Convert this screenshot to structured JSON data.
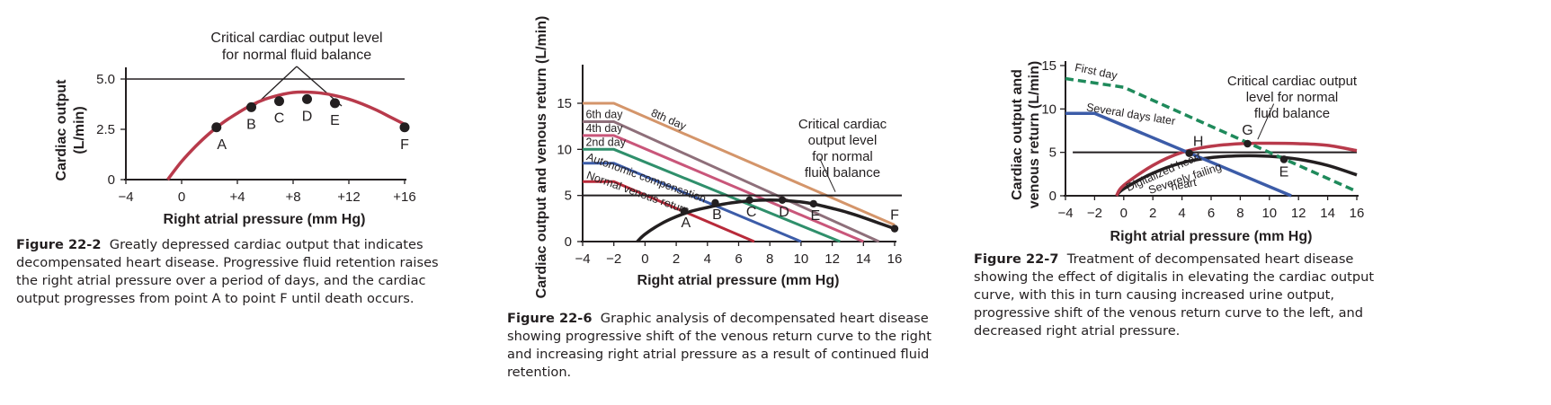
{
  "fig1": {
    "caption_num": "Figure 22-2",
    "caption_text": "Greatly depressed cardiac output that indicates decompensated heart disease. Progressive fluid retention raises the right atrial pressure over a period of days, and the cardiac output progresses from point A to point F until death occurs.",
    "annotation_line1": "Critical cardiac output level",
    "annotation_line2": "for normal fluid balance"
  },
  "fig2": {
    "caption_num": "Figure 22-6",
    "caption_text": "Graphic analysis of decompensated heart disease showing progressive shift of the venous return curve to the right and increasing right atrial pressure as a result of continued fluid retention.",
    "annotation_lines": [
      "Critical cardiac",
      "output level",
      "for normal",
      "fluid balance"
    ]
  },
  "fig3": {
    "caption_num": "Figure 22-7",
    "caption_text": "Treatment of decompensated heart disease showing the effect of digitalis in elevating the cardiac output curve, with this in turn causing increased urine output, progressive shift of the venous return curve to the left, and decreased right atrial pressure.",
    "annotation_lines": [
      "Critical cardiac output",
      "level for normal",
      "fluid balance"
    ]
  },
  "colors": {
    "cardiac_red": "#b83a4b",
    "black": "#231f20",
    "blue": "#3c5ca8",
    "green_dashed": "#1f8a5b",
    "tan": "#d4956a",
    "mauve": "#8e6f7a",
    "pink": "#c9567a",
    "teal_green": "#2f8f6b",
    "dark_red": "#b82a3a"
  },
  "chart_data": [
    {
      "type": "line",
      "xlabel": "Right atrial pressure (mm Hg)",
      "ylabel": "Cardiac output (L/min)",
      "xlim": [
        -4,
        16
      ],
      "ylim": [
        0,
        5
      ],
      "x_ticks": [
        "−4",
        "0",
        "+4",
        "+8",
        "+12",
        "+16"
      ],
      "y_ticks": [
        "0",
        "2.5",
        "5.0"
      ],
      "critical_level": 5.0,
      "series": [
        {
          "x": [
            -1,
            0,
            1,
            2,
            3,
            4,
            5,
            6,
            7,
            8,
            9,
            10,
            11,
            12,
            13,
            14,
            15,
            16
          ],
          "values": [
            0,
            0.9,
            1.65,
            2.3,
            2.85,
            3.3,
            3.7,
            4.0,
            4.2,
            4.33,
            4.35,
            4.3,
            4.18,
            4.0,
            3.75,
            3.45,
            3.1,
            2.75
          ]
        }
      ],
      "points": [
        {
          "label": "A",
          "x": 2.5,
          "y": 2.6
        },
        {
          "label": "B",
          "x": 5,
          "y": 3.6
        },
        {
          "label": "C",
          "x": 7,
          "y": 3.9
        },
        {
          "label": "D",
          "x": 9,
          "y": 4.0
        },
        {
          "label": "E",
          "x": 11,
          "y": 3.8
        },
        {
          "label": "F",
          "x": 16,
          "y": 2.6
        }
      ]
    },
    {
      "type": "line",
      "xlabel": "Right atrial pressure (mm Hg)",
      "ylabel": "Cardiac output and venous return (L/min)",
      "xlim": [
        -4,
        16
      ],
      "ylim": [
        0,
        15
      ],
      "x_ticks": [
        "−4",
        "−2",
        "0",
        "2",
        "4",
        "6",
        "8",
        "10",
        "12",
        "14",
        "16"
      ],
      "y_ticks": [
        "0",
        "5",
        "10",
        "15"
      ],
      "critical_level": 5.0,
      "series": [
        {
          "name": "Normal venous return",
          "x": [
            -4,
            -2,
            7
          ],
          "values": [
            6.5,
            6.5,
            0
          ]
        },
        {
          "name": "Autonomic compensation",
          "x": [
            -4,
            -2,
            10
          ],
          "values": [
            8.5,
            8.5,
            0
          ]
        },
        {
          "name": "2nd day",
          "x": [
            -4,
            -2,
            12.5
          ],
          "values": [
            10,
            10,
            0
          ]
        },
        {
          "name": "4th day",
          "x": [
            -4,
            -2,
            14
          ],
          "values": [
            11.5,
            11.5,
            0
          ]
        },
        {
          "name": "6th day",
          "x": [
            -4,
            -2,
            15
          ],
          "values": [
            13,
            13,
            0
          ]
        },
        {
          "name": "8th day",
          "x": [
            -4,
            -2,
            16
          ],
          "values": [
            15,
            15,
            1.8
          ]
        },
        {
          "x": [
            -0.5,
            0,
            1,
            2,
            3,
            4,
            5,
            6,
            7,
            8,
            9,
            10,
            11,
            12,
            13,
            14,
            15,
            16
          ],
          "values": [
            0,
            0.8,
            1.9,
            2.7,
            3.3,
            3.7,
            4.05,
            4.3,
            4.45,
            4.5,
            4.45,
            4.3,
            4.0,
            3.6,
            3.15,
            2.6,
            2.0,
            1.4
          ]
        }
      ],
      "points": [
        {
          "label": "A",
          "x": 2.5,
          "y": 3.3
        },
        {
          "label": "B",
          "x": 4.5,
          "y": 4.2
        },
        {
          "label": "C",
          "x": 6.7,
          "y": 4.5
        },
        {
          "label": "D",
          "x": 8.8,
          "y": 4.5
        },
        {
          "label": "E",
          "x": 10.8,
          "y": 4.1
        },
        {
          "label": "F",
          "x": 16,
          "y": 1.4
        }
      ]
    },
    {
      "type": "line",
      "xlabel": "Right atrial pressure (mm Hg)",
      "ylabel": "Cardiac output and venous return (L/min)",
      "xlim": [
        -4,
        16
      ],
      "ylim": [
        0,
        15
      ],
      "x_ticks": [
        "−4",
        "−2",
        "0",
        "2",
        "4",
        "6",
        "8",
        "10",
        "12",
        "14",
        "16"
      ],
      "y_ticks": [
        "0",
        "5",
        "10",
        "15"
      ],
      "critical_level": 5.0,
      "series": [
        {
          "name": "First day",
          "x": [
            -4,
            0,
            16
          ],
          "values": [
            13.5,
            12.5,
            0.5
          ]
        },
        {
          "name": "Several days later",
          "x": [
            -4,
            -2,
            11.5
          ],
          "values": [
            9.5,
            9.5,
            0
          ]
        },
        {
          "name": "Digitalized heart",
          "x": [
            -0.5,
            0,
            2,
            4,
            6,
            8,
            10,
            12,
            14,
            16
          ],
          "values": [
            0,
            1.2,
            3.5,
            5,
            5.7,
            6,
            6.05,
            6,
            5.8,
            5.2
          ]
        },
        {
          "name": "Severely failing heart",
          "x": [
            -0.5,
            0,
            2,
            4,
            6,
            8,
            10,
            12,
            14,
            16
          ],
          "values": [
            0,
            0.8,
            2.6,
            3.8,
            4.4,
            4.6,
            4.55,
            4.2,
            3.5,
            2.4
          ]
        }
      ],
      "points": [
        {
          "label": "H",
          "x": 4.5,
          "y": 4.9
        },
        {
          "label": "G",
          "x": 8.5,
          "y": 6.0
        },
        {
          "label": "E",
          "x": 11,
          "y": 4.2
        }
      ]
    }
  ]
}
